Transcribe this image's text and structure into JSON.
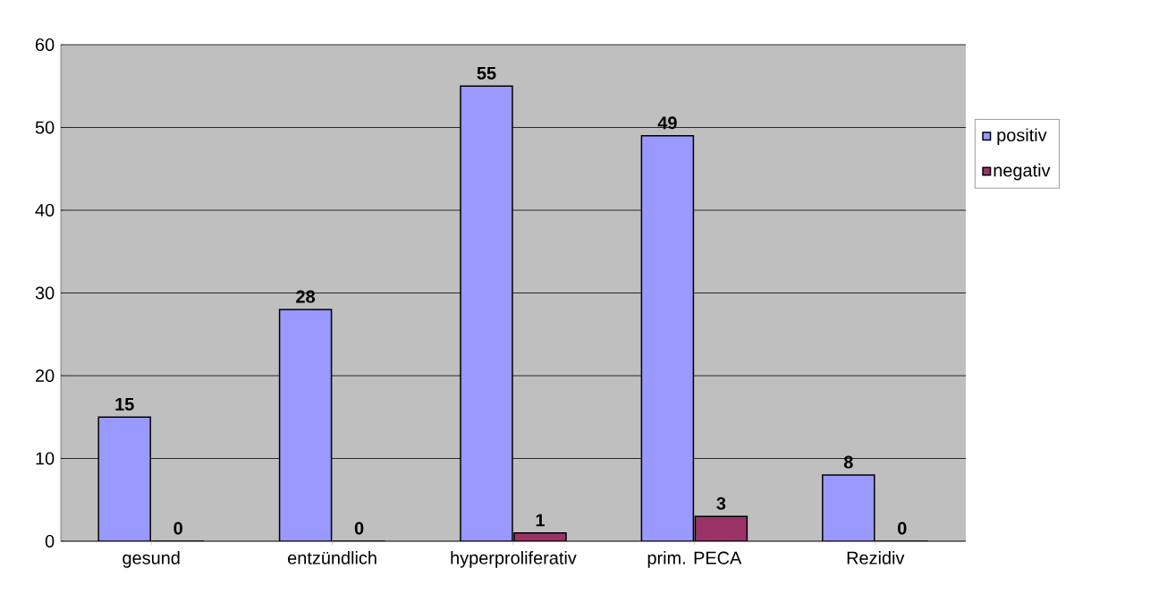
{
  "chart_data": {
    "type": "bar",
    "categories": [
      "gesund",
      "entzündlich",
      "hyperproliferativ",
      "prim. PECA",
      "Rezidiv"
    ],
    "series": [
      {
        "name": "positiv",
        "color": "#9999ff",
        "values": [
          15,
          28,
          55,
          49,
          8
        ]
      },
      {
        "name": "negativ",
        "color": "#993366",
        "values": [
          0,
          0,
          1,
          3,
          0
        ]
      }
    ],
    "ylim": [
      0,
      60
    ],
    "yticks": [
      0,
      10,
      20,
      30,
      40,
      50,
      60
    ],
    "grid": "y",
    "legend": "right",
    "data_labels": true
  }
}
